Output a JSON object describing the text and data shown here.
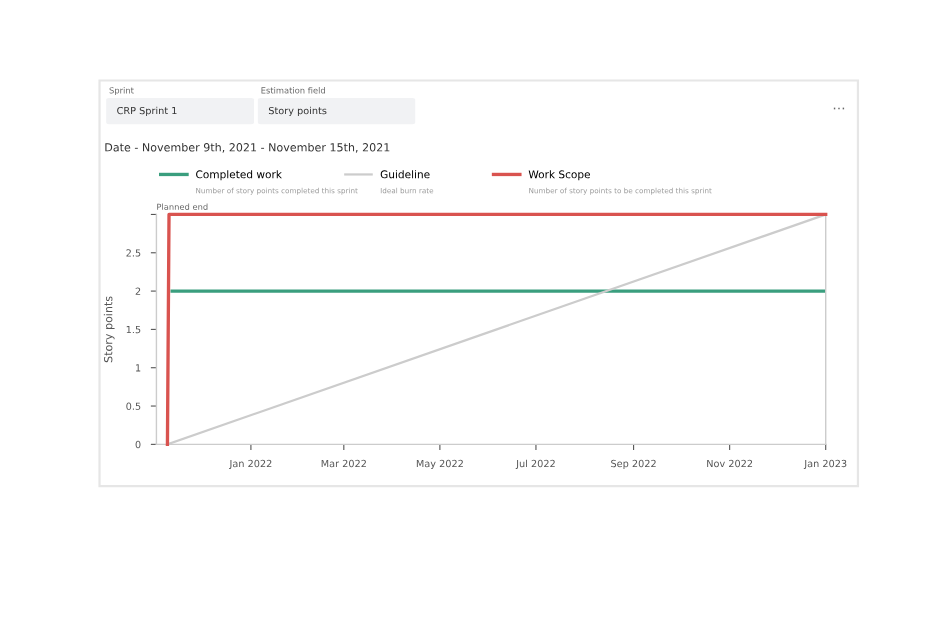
{
  "chart_data": {
    "type": "line",
    "title": "Date - November 9th, 2021 - November 15th, 2021",
    "ylabel": "Story points",
    "annotations": [
      "Sprint",
      "CRP Sprint 1",
      "Estimation field",
      "Story points",
      "Number of story points completed this sprint",
      "Ideal burn rate",
      "Number of story points to be completed this sprint",
      "Planned end",
      "···"
    ],
    "series": [
      {
        "name": "Completed work",
        "color": "#3a9e7e",
        "type": "step",
        "x": [
          "2021-11-12",
          "2023-01-01"
        ],
        "values": [
          2,
          2
        ]
      },
      {
        "name": "Guideline",
        "color": "#cccccc",
        "type": "line",
        "x": [
          "2021-11-09",
          "2023-01-01"
        ],
        "values": [
          0,
          3
        ]
      },
      {
        "name": "Work Scope",
        "color": "#d9534f",
        "type": "line",
        "x": [
          "2021-11-09",
          "2021-11-10",
          "2023-01-01"
        ],
        "values": [
          0,
          3,
          3
        ]
      }
    ],
    "xlim": [
      "2021-11-02",
      "2023-01-01"
    ],
    "xticks": [
      {
        "value": "2022-01-01",
        "label": "Jan 2022"
      },
      {
        "value": "2022-03-01",
        "label": "Mar 2022"
      },
      {
        "value": "2022-05-01",
        "label": "May 2022"
      },
      {
        "value": "2022-07-01",
        "label": "Jul 2022"
      },
      {
        "value": "2022-09-01",
        "label": "Sep 2022"
      },
      {
        "value": "2022-11-01",
        "label": "Nov 2022"
      },
      {
        "value": "2023-01-01",
        "label": "Jan 2023"
      }
    ],
    "ylim": [
      0,
      3
    ],
    "yticks": [
      0,
      0.5,
      1,
      1.5,
      2,
      2.5,
      {
        "value": 3,
        "label": null
      }
    ],
    "grid": false,
    "legend": "top"
  }
}
